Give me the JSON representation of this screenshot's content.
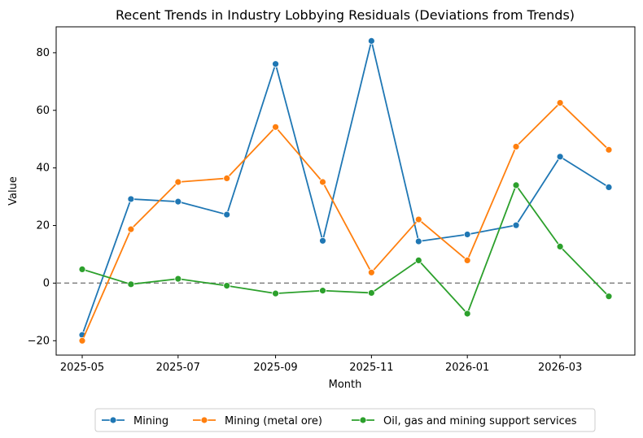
{
  "chart_data": {
    "type": "line",
    "title": "Recent Trends in Industry Lobbying Residuals (Deviations from Trends)",
    "xlabel": "Month",
    "ylabel": "Value",
    "x": [
      "2025-05",
      "2025-06",
      "2025-07",
      "2025-08",
      "2025-09",
      "2025-10",
      "2025-11",
      "2025-12",
      "2026-01",
      "2026-02",
      "2026-03",
      "2026-04"
    ],
    "xticks": [
      "2025-05",
      "2025-07",
      "2025-09",
      "2025-11",
      "2026-01",
      "2026-03"
    ],
    "yticks": [
      -20,
      0,
      20,
      40,
      60,
      80
    ],
    "ylim": [
      -25,
      89
    ],
    "reference_line": {
      "y": 0,
      "style": "dashed",
      "color": "#808080"
    },
    "grid": false,
    "legend_position": "bottom-center, outside plot",
    "series": [
      {
        "name": "Mining",
        "color": "#1f77b4",
        "values": [
          -18,
          29.2,
          28.3,
          23.8,
          76.1,
          14.7,
          84.1,
          14.5,
          16.9,
          20.1,
          43.9,
          33.3
        ]
      },
      {
        "name": "Mining (metal ore)",
        "color": "#ff7f0e",
        "values": [
          -20,
          18.7,
          35.1,
          36.4,
          54.2,
          35.1,
          3.7,
          22.1,
          7.9,
          47.4,
          62.6,
          46.3
        ]
      },
      {
        "name": "Oil, gas and mining support services",
        "color": "#2ca02c",
        "values": [
          4.8,
          -0.4,
          1.5,
          -0.9,
          -3.6,
          -2.6,
          -3.4,
          7.9,
          -10.6,
          34.0,
          12.7,
          -4.6
        ]
      }
    ]
  }
}
